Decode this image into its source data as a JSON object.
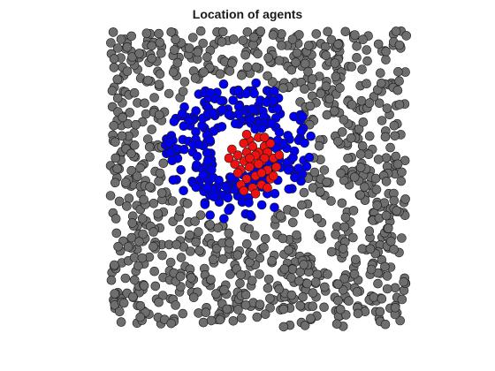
{
  "chart_data": {
    "type": "scatter",
    "title": "Location of agents",
    "xlabel": "",
    "ylabel": "",
    "axes_visible": false,
    "grid": false,
    "xlim": [
      0,
      1
    ],
    "ylim": [
      0,
      1
    ],
    "colors": {
      "outer": "#6e6e6e",
      "middle": "#0000ee",
      "inner": "#ee1111",
      "marker_edge": "#1a1a1a"
    },
    "series": [
      {
        "color": "#ee1111",
        "points": [
          [
            0.45,
            0.56
          ],
          [
            0.48,
            0.55
          ],
          [
            0.51,
            0.56
          ],
          [
            0.46,
            0.59
          ],
          [
            0.5,
            0.59
          ],
          [
            0.47,
            0.63
          ],
          [
            0.52,
            0.61
          ],
          [
            0.44,
            0.53
          ],
          [
            0.49,
            0.51
          ],
          [
            0.53,
            0.53
          ],
          [
            0.43,
            0.58
          ],
          [
            0.55,
            0.57
          ],
          [
            0.46,
            0.5
          ],
          [
            0.51,
            0.48
          ],
          [
            0.48,
            0.47
          ],
          [
            0.54,
            0.5
          ],
          [
            0.42,
            0.55
          ],
          [
            0.5,
            0.64
          ],
          [
            0.45,
            0.62
          ],
          [
            0.53,
            0.59
          ],
          [
            0.47,
            0.54
          ],
          [
            0.49,
            0.58
          ],
          [
            0.52,
            0.57
          ],
          [
            0.44,
            0.48
          ],
          [
            0.56,
            0.54
          ],
          [
            0.41,
            0.6
          ],
          [
            0.48,
            0.61
          ],
          [
            0.51,
            0.52
          ],
          [
            0.45,
            0.46
          ],
          [
            0.53,
            0.47
          ],
          [
            0.47,
            0.57
          ],
          [
            0.5,
            0.55
          ],
          [
            0.54,
            0.62
          ],
          [
            0.43,
            0.52
          ],
          [
            0.49,
            0.45
          ],
          [
            0.57,
            0.58
          ],
          [
            0.46,
            0.65
          ],
          [
            0.52,
            0.64
          ],
          [
            0.4,
            0.57
          ],
          [
            0.55,
            0.51
          ]
        ]
      }
    ]
  }
}
